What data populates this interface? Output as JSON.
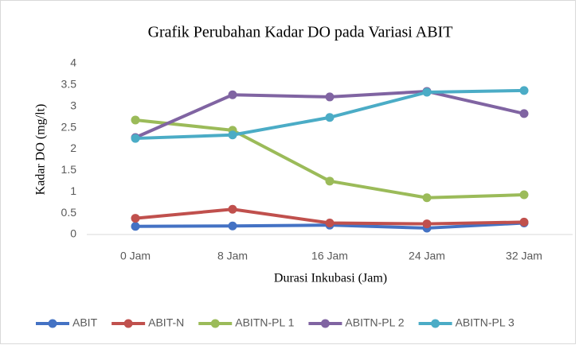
{
  "chart_data": {
    "type": "line",
    "title": "Grafik Perubahan Kadar DO pada Variasi ABIT",
    "x_label": "Durasi Inkubasi (Jam)",
    "y_label": "Kadar DO (mg/lt)",
    "categories": [
      "0 Jam",
      "8 Jam",
      "16 Jam",
      "24 Jam",
      "32 Jam"
    ],
    "series": [
      {
        "name": "ABIT",
        "color": "#4472c4",
        "values": [
          0.19,
          0.2,
          0.22,
          0.15,
          0.27
        ]
      },
      {
        "name": "ABIT-N",
        "color": "#c0504d",
        "values": [
          0.38,
          0.59,
          0.27,
          0.25,
          0.29
        ]
      },
      {
        "name": "ABITN-PL 1",
        "color": "#9bbb59",
        "values": [
          2.68,
          2.44,
          1.25,
          0.86,
          0.93
        ]
      },
      {
        "name": "ABITN-PL 2",
        "color": "#8064a2",
        "values": [
          2.27,
          3.27,
          3.22,
          3.35,
          2.83
        ]
      },
      {
        "name": "ABITN-PL 3",
        "color": "#4bacc6",
        "values": [
          2.25,
          2.33,
          2.74,
          3.33,
          3.37
        ]
      }
    ],
    "ylim": [
      0,
      4
    ],
    "yticks": [
      0,
      0.5,
      1,
      1.5,
      2,
      2.5,
      3,
      3.5,
      4
    ],
    "grid": false,
    "legend": "bottom"
  }
}
